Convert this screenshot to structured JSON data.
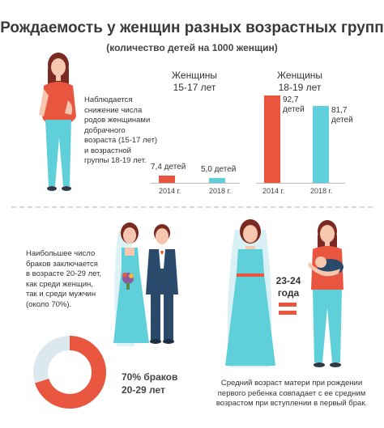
{
  "title": "Рождаемость у женщин разных возрастных групп",
  "subtitle": "(количество детей на 1000 женщин)",
  "note_top": [
    "Наблюдается",
    "снижение числа",
    "родов женщинами",
    "добрачного",
    "возраста (15-17 лет)",
    "и возрастной",
    "группы 18-19 лет."
  ],
  "groups": [
    {
      "label_lines": [
        "Женщины",
        "15-17 лет"
      ]
    },
    {
      "label_lines": [
        "Женщины",
        "18-19 лет"
      ]
    }
  ],
  "chart_data": {
    "type": "bar",
    "categories": [
      "2014 г.",
      "2018 г."
    ],
    "groups": [
      "Женщины 15-17 лет",
      "Женщины 18-19 лет"
    ],
    "series": [
      {
        "values": [
          7.4,
          5.0
        ]
      },
      {
        "values": [
          92.7,
          81.7
        ]
      }
    ],
    "value_labels": [
      [
        "7,4 детей",
        "5,0 детей"
      ],
      [
        "92,7 детей",
        "81,7 детей"
      ]
    ],
    "colors": [
      "#e8563f",
      "#5fcfd9"
    ]
  },
  "note_mid": [
    "Наибольшее число",
    "браков заключается",
    "в возрасте 20-29 лет,",
    "как среди женщин,",
    "так и среди мужчин",
    "(около 70%)."
  ],
  "donut": {
    "percent": 70,
    "label_lines": [
      "70% браков",
      "20-29 лет"
    ],
    "color_main": "#e8563f",
    "color_rest": "#dbe8ee"
  },
  "age_label_lines": [
    "23-24",
    "года"
  ],
  "note_bottom": [
    "Средний возраст матери при рождении",
    "первого ребенка совпадает с ее средним",
    "возрастом при вступлении в первый брак."
  ],
  "colors": {
    "accent": "#e8563f",
    "teal": "#5fcfd9",
    "hair": "#7a2a22",
    "skin": "#f6c7ae",
    "suit": "#2a4a6b"
  }
}
